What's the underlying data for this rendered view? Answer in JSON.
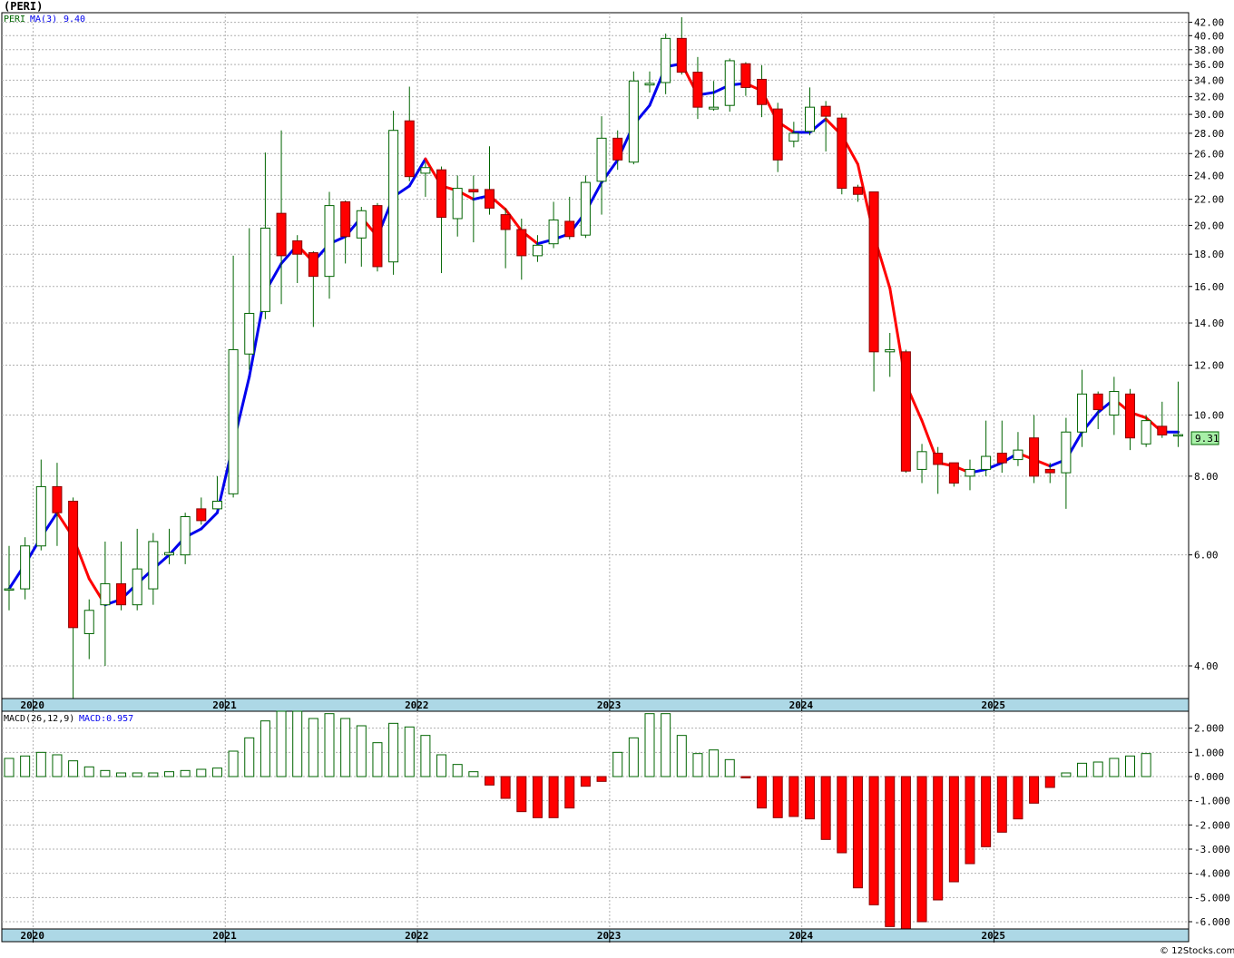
{
  "chart_data": [
    {
      "type": "candlestick",
      "title": "(PERI)",
      "legend": {
        "symbol": "PERI",
        "ma_label": "MA(3)",
        "ma_value": "9.40"
      },
      "y_scale": "log",
      "ylim": [
        3.55,
        43.5
      ],
      "y_ticks": [
        "42.00",
        "40.00",
        "38.00",
        "36.00",
        "34.00",
        "32.00",
        "30.00",
        "28.00",
        "26.00",
        "24.00",
        "22.00",
        "20.00",
        "18.00",
        "16.00",
        "14.00",
        "12.00",
        "10.00",
        "8.00",
        "6.00",
        "4.00"
      ],
      "last_price_label": "9.31",
      "x_axis_years": [
        "2020",
        "2021",
        "2022",
        "2023",
        "2024",
        "2025"
      ],
      "candles": [
        [
          5.3,
          5.3,
          6.2,
          4.9
        ],
        [
          5.3,
          6.2,
          6.4,
          5.1
        ],
        [
          6.2,
          7.7,
          8.5,
          6.1
        ],
        [
          7.7,
          7.0,
          8.4,
          6.2
        ],
        [
          7.3,
          4.6,
          7.4,
          3.55
        ],
        [
          4.5,
          4.9,
          5.1,
          4.1
        ],
        [
          5.0,
          5.4,
          6.3,
          4.0
        ],
        [
          5.4,
          5.0,
          6.3,
          4.9
        ],
        [
          5.0,
          5.7,
          6.6,
          4.9
        ],
        [
          5.3,
          6.3,
          6.5,
          5.0
        ],
        [
          6.0,
          6.05,
          6.6,
          5.8
        ],
        [
          6.0,
          6.9,
          7.0,
          5.8
        ],
        [
          7.1,
          6.8,
          7.4,
          6.7
        ],
        [
          7.1,
          7.3,
          8.0,
          7.1
        ],
        [
          7.5,
          12.7,
          17.9,
          7.4
        ],
        [
          12.5,
          14.5,
          19.8,
          11.8
        ],
        [
          14.6,
          19.8,
          26.1,
          14.2
        ],
        [
          20.9,
          17.9,
          28.3,
          15.0
        ],
        [
          18.9,
          18.0,
          19.3,
          16.2
        ],
        [
          18.1,
          16.6,
          18.2,
          13.8
        ],
        [
          16.6,
          21.5,
          22.6,
          15.3
        ],
        [
          21.8,
          19.2,
          21.9,
          17.4
        ],
        [
          19.1,
          21.1,
          21.4,
          17.2
        ],
        [
          21.5,
          17.2,
          21.7,
          16.9
        ],
        [
          17.5,
          28.3,
          30.4,
          16.7
        ],
        [
          29.3,
          23.9,
          33.2,
          23.5
        ],
        [
          24.2,
          24.7,
          25.2,
          22.2
        ],
        [
          24.5,
          20.6,
          24.8,
          16.8
        ],
        [
          20.5,
          22.9,
          24.0,
          19.2
        ],
        [
          22.8,
          22.6,
          24.0,
          18.8
        ],
        [
          22.8,
          21.3,
          26.7,
          20.8
        ],
        [
          20.8,
          19.7,
          21.3,
          17.1
        ],
        [
          19.7,
          17.9,
          20.5,
          16.4
        ],
        [
          17.9,
          18.6,
          19.3,
          17.5
        ],
        [
          18.7,
          20.4,
          21.8,
          18.4
        ],
        [
          20.3,
          19.2,
          22.2,
          19.0
        ],
        [
          19.3,
          23.4,
          24.0,
          19.1
        ],
        [
          23.5,
          27.5,
          29.8,
          20.8
        ],
        [
          27.5,
          25.4,
          28.3,
          24.5
        ],
        [
          25.2,
          33.9,
          35.1,
          25.0
        ],
        [
          33.4,
          33.6,
          35.1,
          32.5
        ],
        [
          33.7,
          39.6,
          40.3,
          32.3
        ],
        [
          39.6,
          35.0,
          42.8,
          34.7
        ],
        [
          35.0,
          30.8,
          37.0,
          29.5
        ],
        [
          30.6,
          30.8,
          33.9,
          30.4
        ],
        [
          31.0,
          36.5,
          36.8,
          30.3
        ],
        [
          36.1,
          33.1,
          36.3,
          32.1
        ],
        [
          34.1,
          31.1,
          35.9,
          29.7
        ],
        [
          30.6,
          25.4,
          31.3,
          24.3
        ],
        [
          27.2,
          28.0,
          29.2,
          26.6
        ],
        [
          28.2,
          30.8,
          33.1,
          27.8
        ],
        [
          30.9,
          29.8,
          31.5,
          26.2
        ],
        [
          29.6,
          22.9,
          30.1,
          22.4
        ],
        [
          23.0,
          22.4,
          23.2,
          21.8
        ],
        [
          22.6,
          12.6,
          22.6,
          10.9
        ],
        [
          12.6,
          12.7,
          13.5,
          11.5
        ],
        [
          12.6,
          8.15,
          12.7,
          8.1
        ],
        [
          8.2,
          8.75,
          9.0,
          7.8
        ],
        [
          8.7,
          8.35,
          8.9,
          7.5
        ],
        [
          8.4,
          7.8,
          8.4,
          7.7
        ],
        [
          8.0,
          8.2,
          8.5,
          7.6
        ],
        [
          8.2,
          8.6,
          9.8,
          8.0
        ],
        [
          8.7,
          8.4,
          9.8,
          8.1
        ],
        [
          8.5,
          8.8,
          9.4,
          8.3
        ],
        [
          9.2,
          8.0,
          10.0,
          7.8
        ],
        [
          8.2,
          8.1,
          8.4,
          7.8
        ],
        [
          8.1,
          9.4,
          9.9,
          7.1
        ],
        [
          9.4,
          10.8,
          11.8,
          8.9
        ],
        [
          10.8,
          10.2,
          10.9,
          9.5
        ],
        [
          10.0,
          10.9,
          11.5,
          9.3
        ],
        [
          10.8,
          9.2,
          11.0,
          8.8
        ],
        [
          9.0,
          9.8,
          10.0,
          8.9
        ],
        [
          9.6,
          9.3,
          10.5,
          9.2
        ],
        [
          9.3,
          9.31,
          11.3,
          8.9
        ]
      ],
      "ma3": [
        5.3,
        5.8,
        6.4,
        7.0,
        6.4,
        5.5,
        5.0,
        5.1,
        5.4,
        5.7,
        6.0,
        6.4,
        6.6,
        7.0,
        9.0,
        11.5,
        15.7,
        17.4,
        18.6,
        17.5,
        18.7,
        19.2,
        20.6,
        19.2,
        22.2,
        23.1,
        25.5,
        23.1,
        22.7,
        22.0,
        22.3,
        21.2,
        19.6,
        18.7,
        19.0,
        19.4,
        21.0,
        23.4,
        25.4,
        28.9,
        31.0,
        35.7,
        36.1,
        32.2,
        32.5,
        33.4,
        33.6,
        32.7,
        29.2,
        28.1,
        28.1,
        29.5,
        27.8,
        25.0,
        19.3,
        15.9,
        11.2,
        9.8,
        8.4,
        8.3,
        8.1,
        8.2,
        8.4,
        8.7,
        8.5,
        8.3,
        8.5,
        9.4,
        10.1,
        10.6,
        10.1,
        9.9,
        9.4,
        9.4
      ],
      "color_up": "#ffffff",
      "color_down": "#ff0000",
      "color_candle_outline": "#006400",
      "color_ma_up": "#0000ee",
      "color_ma_down": "#ff0000"
    },
    {
      "type": "bar",
      "title": "MACD(26,12,9)",
      "value_label": "MACD:0.957",
      "ylim": [
        -6.3,
        2.7
      ],
      "y_ticks": [
        "2.000",
        "1.000",
        "0.000",
        "-1.000",
        "-2.000",
        "-3.000",
        "-4.000",
        "-5.000",
        "-6.000"
      ],
      "x_axis_years": [
        "2020",
        "2021",
        "2022",
        "2023",
        "2024",
        "2025"
      ],
      "values": [
        0.75,
        0.85,
        1.0,
        0.9,
        0.65,
        0.4,
        0.25,
        0.15,
        0.15,
        0.15,
        0.2,
        0.25,
        0.3,
        0.35,
        1.05,
        1.6,
        2.3,
        2.7,
        2.7,
        2.4,
        2.6,
        2.4,
        2.1,
        1.4,
        2.2,
        2.05,
        1.7,
        0.9,
        0.5,
        0.2,
        -0.35,
        -0.9,
        -1.45,
        -1.7,
        -1.7,
        -1.3,
        -0.4,
        -0.2,
        1.0,
        1.6,
        2.6,
        2.6,
        1.7,
        0.95,
        1.1,
        0.7,
        -0.05,
        -1.3,
        -1.7,
        -1.65,
        -1.75,
        -2.6,
        -3.15,
        -4.6,
        -5.3,
        -6.2,
        -6.3,
        -6.0,
        -5.1,
        -4.35,
        -3.6,
        -2.9,
        -2.3,
        -1.75,
        -1.1,
        -0.45,
        0.15,
        0.55,
        0.6,
        0.75,
        0.85,
        0.95
      ],
      "color_positive": "#ffffff",
      "color_negative": "#ff0000",
      "color_outline": "#006400"
    }
  ],
  "footer": {
    "credit": "© 12Stocks.com"
  }
}
